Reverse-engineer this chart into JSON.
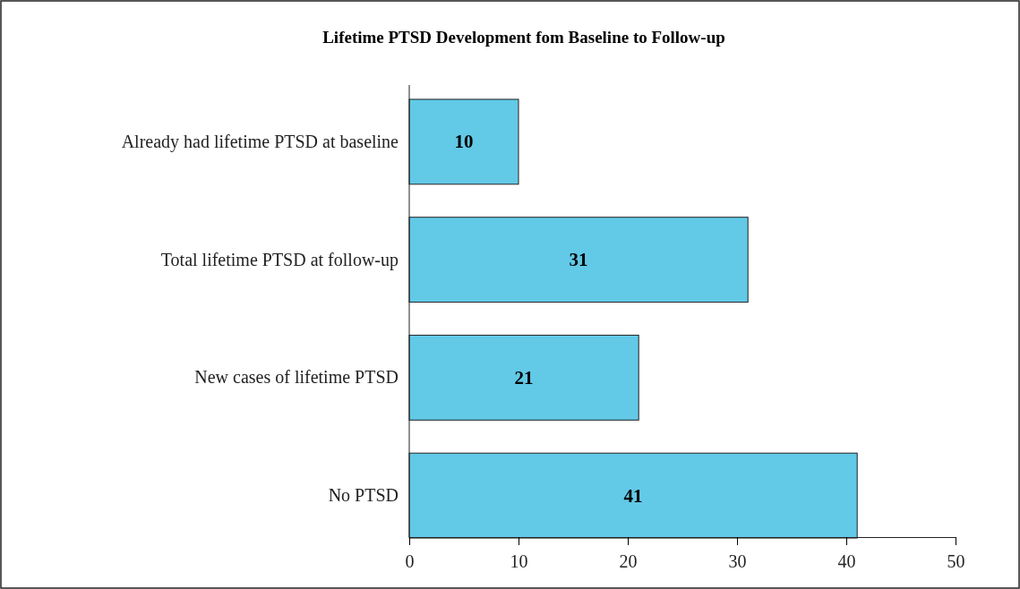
{
  "chart_data": {
    "type": "bar",
    "orientation": "horizontal",
    "title": "Lifetime PTSD Development fom Baseline to Follow-up",
    "categories": [
      "Already had lifetime PTSD at baseline",
      "Total lifetime PTSD at follow-up",
      "New cases of lifetime PTSD",
      "No PTSD"
    ],
    "values": [
      10,
      31,
      21,
      41
    ],
    "color": "#62c9e7",
    "data_labels": true,
    "xlim": [
      0,
      50
    ],
    "xticks": [
      0,
      10,
      20,
      30,
      40,
      50
    ],
    "grid": false
  }
}
